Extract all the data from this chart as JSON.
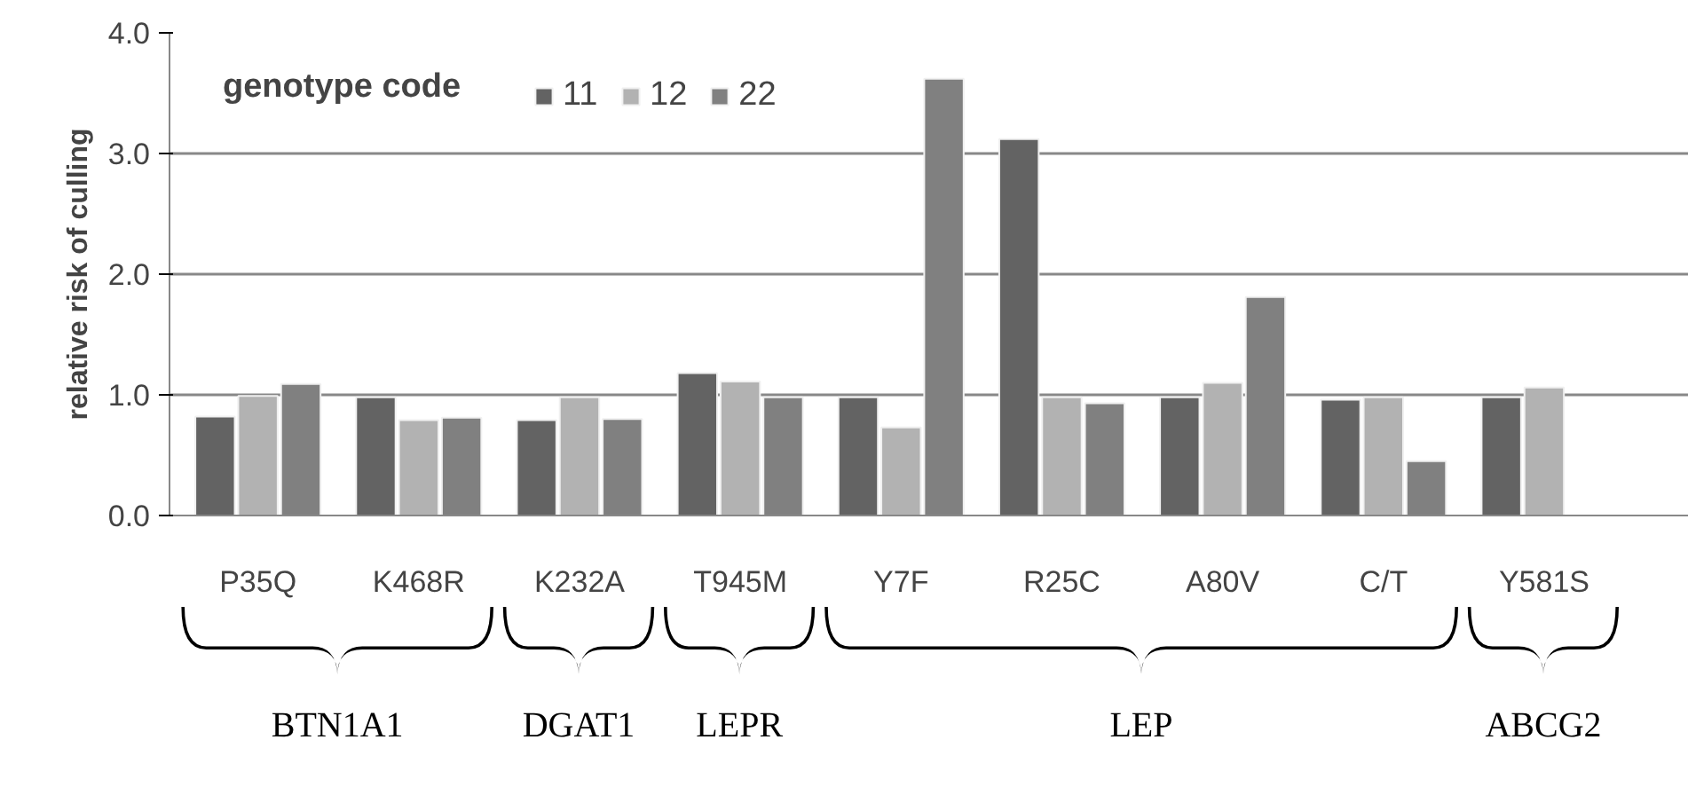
{
  "chart_data": {
    "type": "bar",
    "ylabel": "relative risk of culling",
    "legend_title": "genotype code",
    "legend": "top left",
    "grid": "y",
    "categories": [
      "P35Q",
      "K468R",
      "K232A",
      "T945M",
      "Y7F",
      "R25C",
      "A80V",
      "C/T",
      "Y581S"
    ],
    "series": [
      {
        "name": "11",
        "color": "#636363",
        "values": [
          0.82,
          0.98,
          0.79,
          1.18,
          0.98,
          3.12,
          0.98,
          0.96,
          0.98
        ]
      },
      {
        "name": "12",
        "color": "#b2b2b2",
        "values": [
          0.99,
          0.79,
          0.98,
          1.11,
          0.73,
          0.98,
          1.1,
          0.98,
          1.06
        ]
      },
      {
        "name": "22",
        "color": "#808080",
        "values": [
          1.09,
          0.81,
          0.8,
          0.98,
          3.62,
          0.93,
          1.81,
          0.45,
          null
        ]
      }
    ],
    "ylim": [
      0,
      4
    ],
    "yticks": [
      {
        "value": 0,
        "label": "0.0"
      },
      {
        "value": 1,
        "label": "1.0"
      },
      {
        "value": 2,
        "label": "2.0"
      },
      {
        "value": 3,
        "label": "3.0"
      },
      {
        "value": 4,
        "label": "4.0"
      }
    ],
    "annotations": [
      "BTN1A1",
      "DGAT1",
      "LEPR",
      "LEP",
      "ABCG2"
    ]
  }
}
